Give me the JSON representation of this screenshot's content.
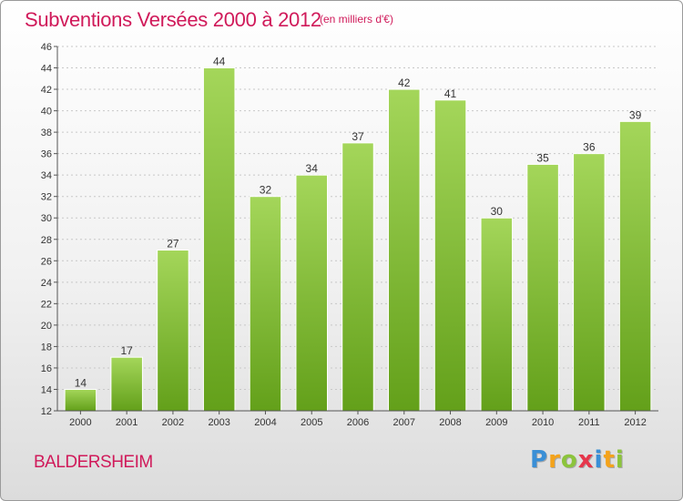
{
  "title": "Subventions Versées 2000 à 2012",
  "subtitle": "(en milliers d'€)",
  "commune": "BALDERSHEIM",
  "logo": {
    "letters": [
      "P",
      "r",
      "o",
      "x",
      "i",
      "t",
      "i"
    ],
    "colors": [
      "#3a8fd6",
      "#f4a31b",
      "#8cc43c",
      "#e6364b",
      "#3a8fd6",
      "#f4a31b",
      "#8cc43c"
    ]
  },
  "colors": {
    "bar_top": "#a4d65a",
    "bar_bottom": "#63a01a",
    "grid": "#c8c8c8",
    "axis": "#555555",
    "text": "#333333"
  },
  "chart_data": {
    "type": "bar",
    "categories": [
      "2000",
      "2001",
      "2002",
      "2003",
      "2004",
      "2005",
      "2006",
      "2007",
      "2008",
      "2009",
      "2010",
      "2011",
      "2012"
    ],
    "values": [
      14,
      17,
      27,
      44,
      32,
      34,
      37,
      42,
      41,
      30,
      35,
      36,
      39
    ],
    "ylim": [
      12,
      46
    ],
    "yticks": [
      "12",
      "14",
      "16",
      "18",
      "20",
      "22",
      "24",
      "26",
      "28",
      "30",
      "32",
      "34",
      "36",
      "38",
      "40",
      "42",
      "44",
      "46"
    ],
    "grid": true
  }
}
